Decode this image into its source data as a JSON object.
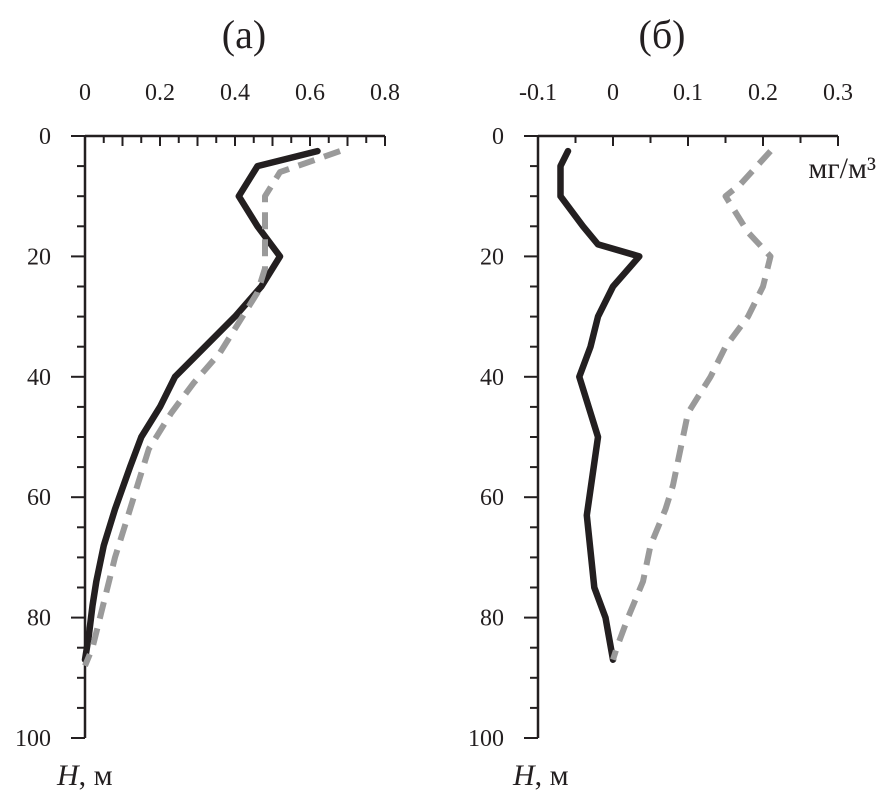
{
  "chart_data": [
    {
      "type": "line",
      "panel_label": "(а)",
      "x_ticks": [
        "0",
        "0.2",
        "0.4",
        "0.6",
        "0.8"
      ],
      "xlim": [
        0,
        0.8
      ],
      "y_ticks": [
        "0",
        "20",
        "40",
        "60",
        "80",
        "100"
      ],
      "ylim": [
        0,
        100
      ],
      "y_inverted": true,
      "x_axis_position": "top",
      "ylabel_var": "H",
      "ylabel_unit": ", м",
      "unit_label": "",
      "grid": false,
      "series": [
        {
          "style": "solid",
          "color": "#231f20",
          "points": [
            [
              0.62,
              2.5
            ],
            [
              0.46,
              5
            ],
            [
              0.41,
              10
            ],
            [
              0.46,
              15
            ],
            [
              0.52,
              20
            ],
            [
              0.47,
              25
            ],
            [
              0.4,
              30
            ],
            [
              0.32,
              35
            ],
            [
              0.24,
              40
            ],
            [
              0.2,
              45
            ],
            [
              0.15,
              50
            ],
            [
              0.12,
              55
            ],
            [
              0.08,
              62
            ],
            [
              0.05,
              68
            ],
            [
              0.03,
              74
            ],
            [
              0.02,
              78
            ],
            [
              0.01,
              83
            ],
            [
              0.0,
              87
            ]
          ]
        },
        {
          "style": "dashed",
          "color": "#9a9a9a",
          "points": [
            [
              0.68,
              2.5
            ],
            [
              0.52,
              6
            ],
            [
              0.48,
              10
            ],
            [
              0.48,
              13
            ],
            [
              0.48,
              18
            ],
            [
              0.48,
              22
            ],
            [
              0.46,
              26
            ],
            [
              0.41,
              31
            ],
            [
              0.36,
              36
            ],
            [
              0.29,
              41
            ],
            [
              0.23,
              46
            ],
            [
              0.17,
              52
            ],
            [
              0.14,
              58
            ],
            [
              0.11,
              64
            ],
            [
              0.08,
              70
            ],
            [
              0.06,
              75
            ],
            [
              0.04,
              80
            ],
            [
              0.02,
              85
            ],
            [
              0.0,
              88
            ]
          ]
        }
      ]
    },
    {
      "type": "line",
      "panel_label": "(б)",
      "x_ticks": [
        "-0.1",
        "0",
        "0.1",
        "0.2",
        "0.3"
      ],
      "xlim": [
        -0.1,
        0.3
      ],
      "y_ticks": [
        "0",
        "20",
        "40",
        "60",
        "80",
        "100"
      ],
      "ylim": [
        0,
        100
      ],
      "y_inverted": true,
      "x_axis_position": "top",
      "ylabel_var": "H",
      "ylabel_unit": ", м",
      "unit_label": "мг/м³",
      "grid": false,
      "series": [
        {
          "style": "solid",
          "color": "#231f20",
          "points": [
            [
              -0.06,
              2.5
            ],
            [
              -0.07,
              5
            ],
            [
              -0.07,
              10
            ],
            [
              -0.04,
              15
            ],
            [
              -0.02,
              18
            ],
            [
              0.035,
              20
            ],
            [
              0.0,
              25
            ],
            [
              -0.02,
              30
            ],
            [
              -0.03,
              35
            ],
            [
              -0.045,
              40
            ],
            [
              -0.02,
              50
            ],
            [
              -0.035,
              63
            ],
            [
              -0.025,
              75
            ],
            [
              -0.01,
              80
            ],
            [
              0.0,
              87
            ]
          ]
        },
        {
          "style": "dashed",
          "color": "#9a9a9a",
          "points": [
            [
              0.21,
              2.5
            ],
            [
              0.17,
              8
            ],
            [
              0.15,
              10
            ],
            [
              0.18,
              16
            ],
            [
              0.21,
              20
            ],
            [
              0.2,
              25
            ],
            [
              0.18,
              30
            ],
            [
              0.15,
              35
            ],
            [
              0.13,
              40
            ],
            [
              0.1,
              46
            ],
            [
              0.09,
              52
            ],
            [
              0.08,
              58
            ],
            [
              0.07,
              62
            ],
            [
              0.05,
              68
            ],
            [
              0.04,
              74
            ],
            [
              0.02,
              80
            ],
            [
              0.005,
              85
            ],
            [
              0.0,
              87
            ]
          ]
        }
      ]
    }
  ]
}
